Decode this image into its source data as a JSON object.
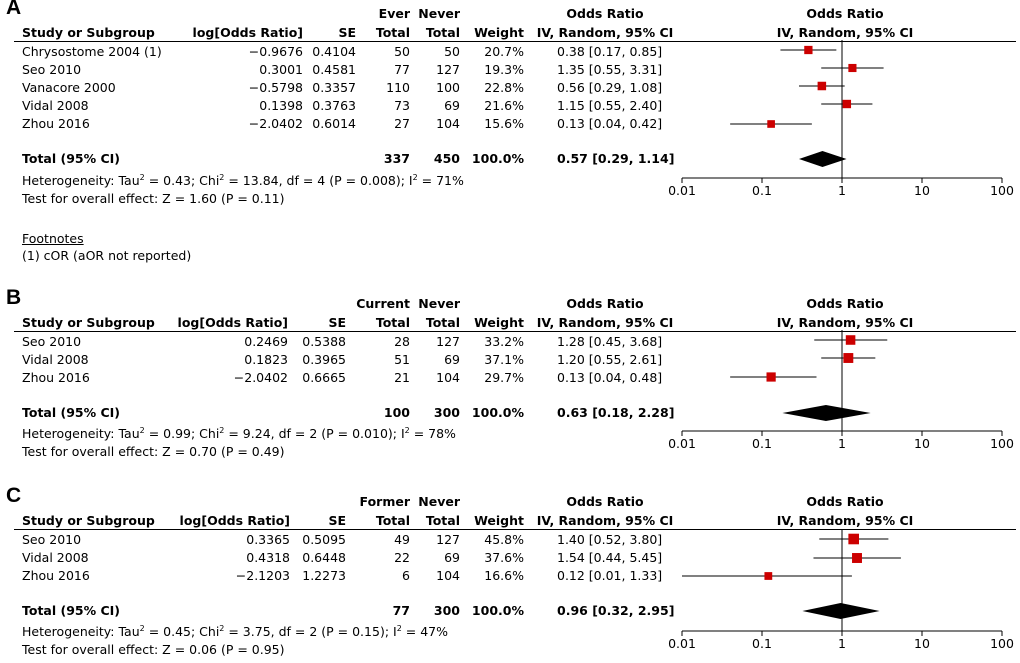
{
  "chart_data": [
    {
      "type": "forest",
      "panel_label": "A",
      "headers": {
        "study": "Study or Subgroup",
        "log_or": "log[Odds Ratio]",
        "se": "SE",
        "exp_group": "Ever",
        "ctrl_group": "Never",
        "total": "Total",
        "weight": "Weight",
        "or": "Odds Ratio",
        "or_method": "IV, Random, 95% CI",
        "plot_title": "Odds Ratio",
        "plot_method": "IV, Random, 95% CI"
      },
      "studies": [
        {
          "name": "Chrysostome 2004 (1)",
          "log_or": "−0.9676",
          "se": "0.4104",
          "exp_total": "50",
          "ctrl_total": "50",
          "weight": "20.7%",
          "ci_text": "0.38 [0.17, 0.85]",
          "or": 0.38,
          "lo": 0.17,
          "hi": 0.85,
          "w": 20.7
        },
        {
          "name": "Seo 2010",
          "log_or": "0.3001",
          "se": "0.4581",
          "exp_total": "77",
          "ctrl_total": "127",
          "weight": "19.3%",
          "ci_text": "1.35 [0.55, 3.31]",
          "or": 1.35,
          "lo": 0.55,
          "hi": 3.31,
          "w": 19.3
        },
        {
          "name": "Vanacore 2000",
          "log_or": "−0.5798",
          "se": "0.3357",
          "exp_total": "110",
          "ctrl_total": "100",
          "weight": "22.8%",
          "ci_text": "0.56 [0.29, 1.08]",
          "or": 0.56,
          "lo": 0.29,
          "hi": 1.08,
          "w": 22.8
        },
        {
          "name": "Vidal 2008",
          "log_or": "0.1398",
          "se": "0.3763",
          "exp_total": "73",
          "ctrl_total": "69",
          "weight": "21.6%",
          "ci_text": "1.15 [0.55, 2.40]",
          "or": 1.15,
          "lo": 0.55,
          "hi": 2.4,
          "w": 21.6
        },
        {
          "name": "Zhou 2016",
          "log_or": "−2.0402",
          "se": "0.6014",
          "exp_total": "27",
          "ctrl_total": "104",
          "weight": "15.6%",
          "ci_text": "0.13 [0.04, 0.42]",
          "or": 0.13,
          "lo": 0.04,
          "hi": 0.42,
          "w": 15.6
        }
      ],
      "total": {
        "label": "Total (95% CI)",
        "exp_total": "337",
        "ctrl_total": "450",
        "weight": "100.0%",
        "ci_text": "0.57 [0.29, 1.14]",
        "or": 0.57,
        "lo": 0.29,
        "hi": 1.14
      },
      "heterogeneity": {
        "prefix": "Heterogeneity: Tau",
        "tau": " = 0.43; Chi",
        "chi": " = 13.84, df = 4 (P = 0.008); I",
        "i2": " = 71%"
      },
      "overall_effect": "Test for overall effect: Z = 1.60 (P = 0.11)",
      "footnotes_title": "Footnotes",
      "footnote": "(1) cOR (aOR not reported)",
      "axis": {
        "scale": "log",
        "xlim": [
          0.01,
          100
        ],
        "ticks": [
          "0.01",
          "0.1",
          "1",
          "10",
          "100"
        ]
      }
    },
    {
      "type": "forest",
      "panel_label": "B",
      "headers": {
        "study": "Study or Subgroup",
        "log_or": "log[Odds Ratio]",
        "se": "SE",
        "exp_group": "Current",
        "ctrl_group": "Never",
        "total": "Total",
        "weight": "Weight",
        "or": "Odds Ratio",
        "or_method": "IV, Random, 95% CI",
        "plot_title": "Odds Ratio",
        "plot_method": "IV, Random, 95% CI"
      },
      "studies": [
        {
          "name": "Seo 2010",
          "log_or": "0.2469",
          "se": "0.5388",
          "exp_total": "28",
          "ctrl_total": "127",
          "weight": "33.2%",
          "ci_text": "1.28 [0.45, 3.68]",
          "or": 1.28,
          "lo": 0.45,
          "hi": 3.68,
          "w": 33.2
        },
        {
          "name": "Vidal 2008",
          "log_or": "0.1823",
          "se": "0.3965",
          "exp_total": "51",
          "ctrl_total": "69",
          "weight": "37.1%",
          "ci_text": "1.20 [0.55, 2.61]",
          "or": 1.2,
          "lo": 0.55,
          "hi": 2.61,
          "w": 37.1
        },
        {
          "name": "Zhou 2016",
          "log_or": "−2.0402",
          "se": "0.6665",
          "exp_total": "21",
          "ctrl_total": "104",
          "weight": "29.7%",
          "ci_text": "0.13 [0.04, 0.48]",
          "or": 0.13,
          "lo": 0.04,
          "hi": 0.48,
          "w": 29.7
        }
      ],
      "total": {
        "label": "Total (95% CI)",
        "exp_total": "100",
        "ctrl_total": "300",
        "weight": "100.0%",
        "ci_text": "0.63 [0.18, 2.28]",
        "or": 0.63,
        "lo": 0.18,
        "hi": 2.28
      },
      "heterogeneity": {
        "prefix": "Heterogeneity: Tau",
        "tau": " = 0.99; Chi",
        "chi": " = 9.24, df = 2 (P = 0.010); I",
        "i2": " = 78%"
      },
      "overall_effect": "Test for overall effect: Z = 0.70 (P = 0.49)",
      "axis": {
        "scale": "log",
        "xlim": [
          0.01,
          100
        ],
        "ticks": [
          "0.01",
          "0.1",
          "1",
          "10",
          "100"
        ]
      }
    },
    {
      "type": "forest",
      "panel_label": "C",
      "headers": {
        "study": "Study or Subgroup",
        "log_or": "log[Odds Ratio]",
        "se": "SE",
        "exp_group": "Former",
        "ctrl_group": "Never",
        "total": "Total",
        "weight": "Weight",
        "or": "Odds Ratio",
        "or_method": "IV, Random, 95% CI",
        "plot_title": "Odds Ratio",
        "plot_method": "IV, Random, 95% CI"
      },
      "studies": [
        {
          "name": "Seo 2010",
          "log_or": "0.3365",
          "se": "0.5095",
          "exp_total": "49",
          "ctrl_total": "127",
          "weight": "45.8%",
          "ci_text": "1.40 [0.52, 3.80]",
          "or": 1.4,
          "lo": 0.52,
          "hi": 3.8,
          "w": 45.8
        },
        {
          "name": "Vidal 2008",
          "log_or": "0.4318",
          "se": "0.6448",
          "exp_total": "22",
          "ctrl_total": "69",
          "weight": "37.6%",
          "ci_text": "1.54 [0.44, 5.45]",
          "or": 1.54,
          "lo": 0.44,
          "hi": 5.45,
          "w": 37.6
        },
        {
          "name": "Zhou 2016",
          "log_or": "−2.1203",
          "se": "1.2273",
          "exp_total": "6",
          "ctrl_total": "104",
          "weight": "16.6%",
          "ci_text": "0.12 [0.01, 1.33]",
          "or": 0.12,
          "lo": 0.01,
          "hi": 1.33,
          "w": 16.6
        }
      ],
      "total": {
        "label": "Total (95% CI)",
        "exp_total": "77",
        "ctrl_total": "300",
        "weight": "100.0%",
        "ci_text": "0.96 [0.32, 2.95]",
        "or": 0.96,
        "lo": 0.32,
        "hi": 2.95
      },
      "heterogeneity": {
        "prefix": "Heterogeneity: Tau",
        "tau": " = 0.45; Chi",
        "chi": " = 3.75, df = 2 (P = 0.15); I",
        "i2": " = 47%"
      },
      "overall_effect": "Test for overall effect: Z = 0.06 (P = 0.95)",
      "axis": {
        "scale": "log",
        "xlim": [
          0.01,
          100
        ],
        "ticks": [
          "0.01",
          "0.1",
          "1",
          "10",
          "100"
        ]
      }
    }
  ],
  "colors": {
    "marker": "#cc0000",
    "diamond": "#000000"
  },
  "superscript": "2"
}
